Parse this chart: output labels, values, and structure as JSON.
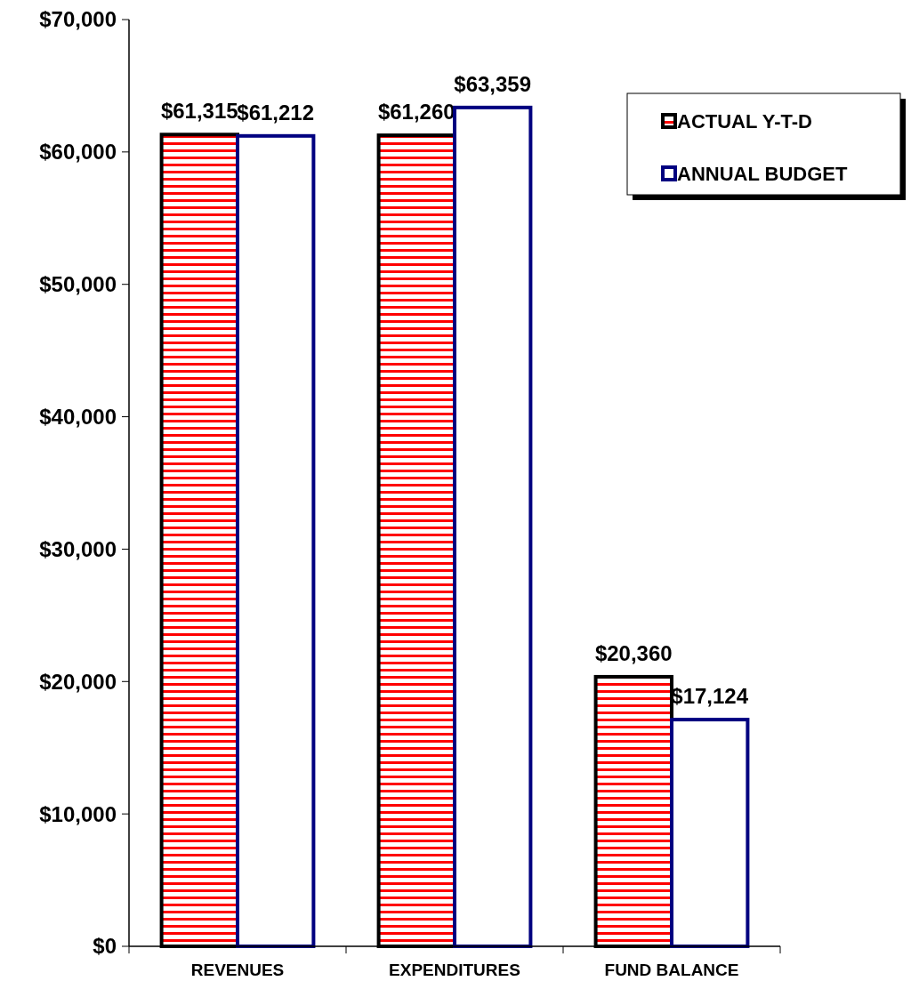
{
  "chart_data": {
    "type": "bar",
    "categories": [
      "REVENUES",
      "EXPENDITURES",
      "FUND BALANCE"
    ],
    "series": [
      {
        "name": "ACTUAL Y-T-D",
        "color": "#000000",
        "values": [
          61315,
          61260,
          20360
        ],
        "value_labels": [
          "$61,315",
          "$61,260",
          "$20,360"
        ]
      },
      {
        "name": "ANNUAL BUDGET",
        "color": "#000080",
        "values": [
          61212,
          63359,
          17124
        ],
        "value_labels": [
          "$61,212",
          "$63,359",
          "$17,124"
        ]
      }
    ],
    "ylim": [
      0,
      70000
    ],
    "yticks": [
      {
        "value": 0,
        "label": "$0"
      },
      {
        "value": 10000,
        "label": "$10,000"
      },
      {
        "value": 20000,
        "label": "$20,000"
      },
      {
        "value": 30000,
        "label": "$30,000"
      },
      {
        "value": 40000,
        "label": "$40,000"
      },
      {
        "value": 50000,
        "label": "$50,000"
      },
      {
        "value": 60000,
        "label": "$60,000"
      },
      {
        "value": 70000,
        "label": "$70,000"
      }
    ],
    "grid": false,
    "legend": "top right"
  }
}
